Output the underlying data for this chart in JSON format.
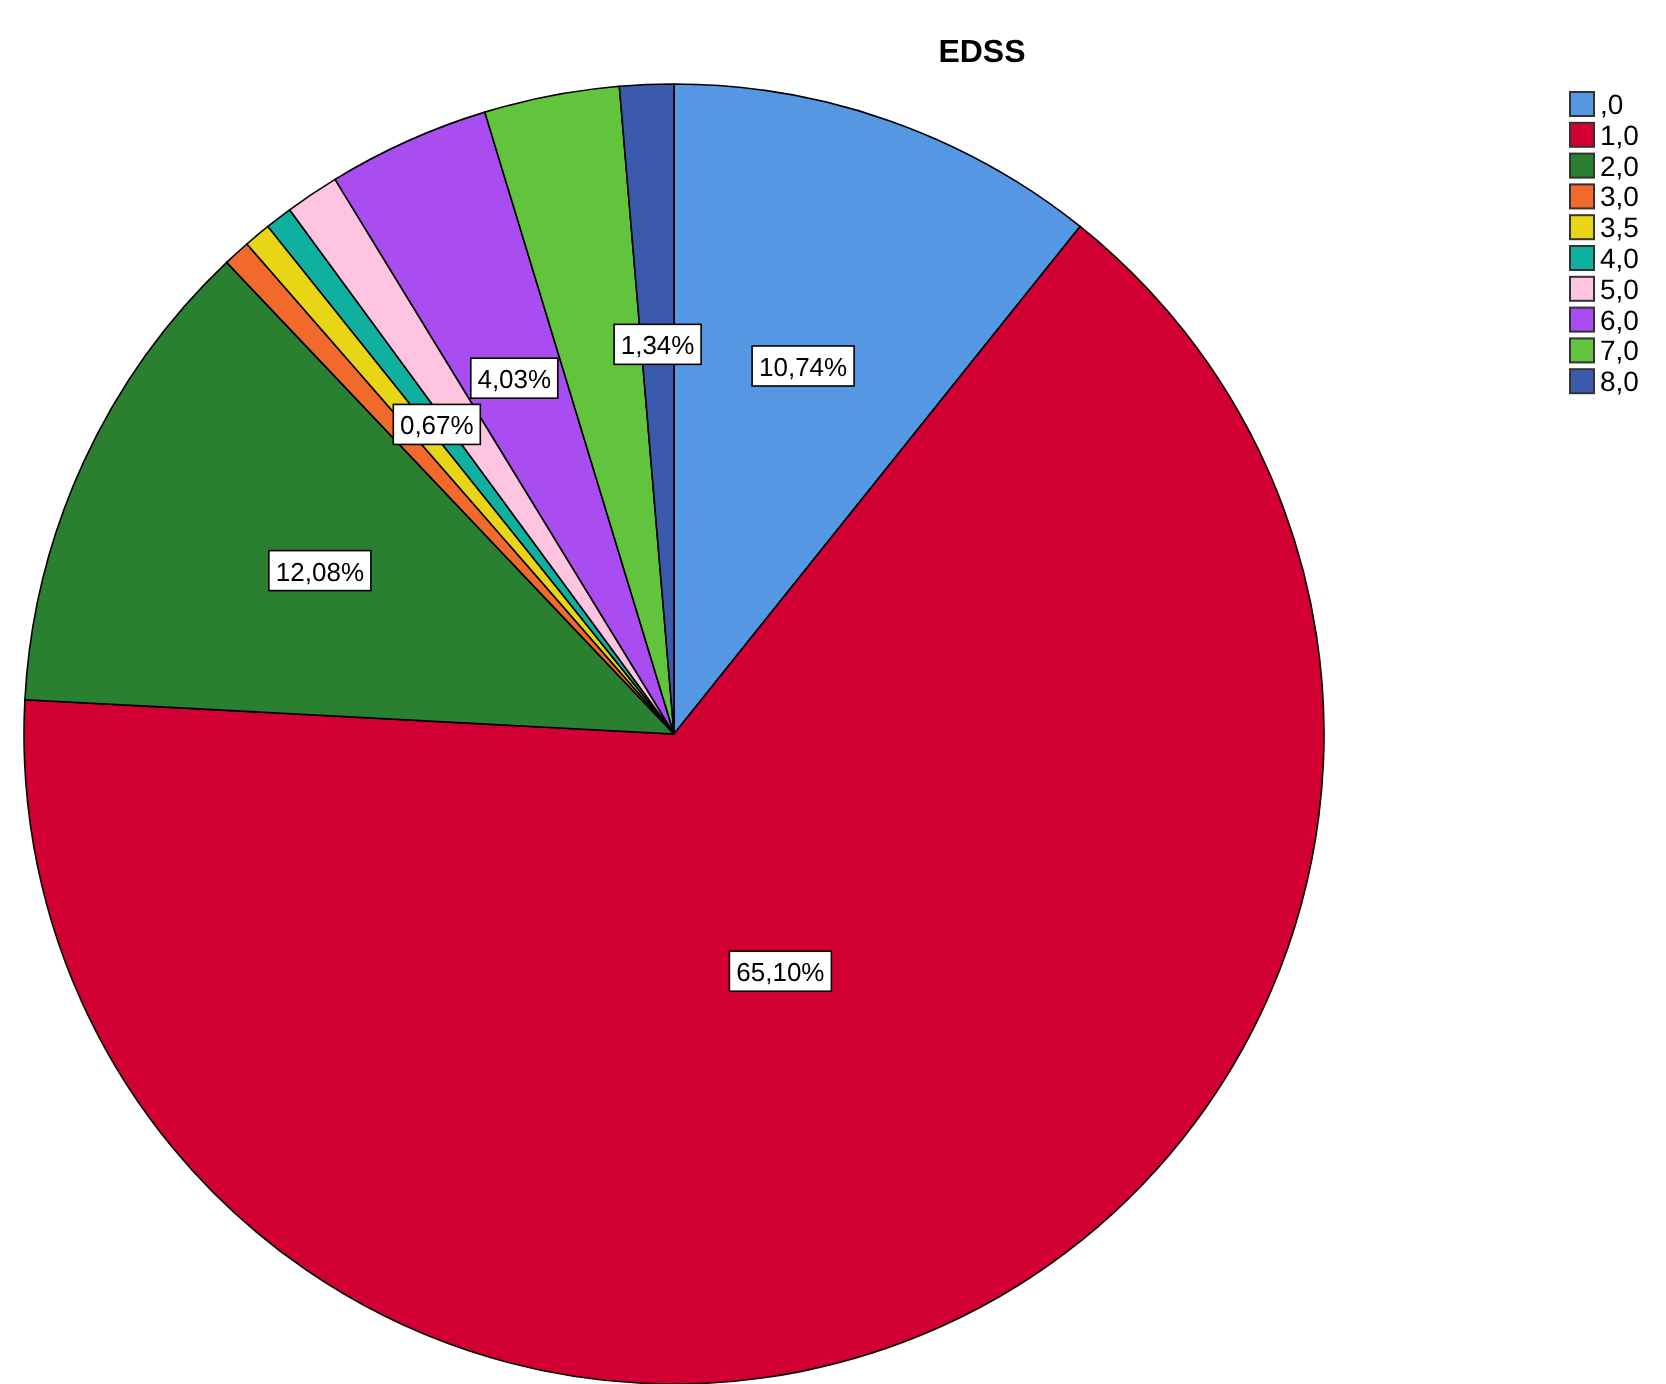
{
  "chart_data": {
    "type": "pie",
    "title": "EDSS",
    "categories": [
      ",0",
      "1,0",
      "2,0",
      "3,0",
      "3,5",
      "4,0",
      "5,0",
      "6,0",
      "7,0",
      "8,0"
    ],
    "values": [
      10.74,
      65.1,
      12.08,
      0.67,
      0.67,
      0.67,
      1.34,
      4.03,
      3.36,
      1.34
    ],
    "colors": [
      "#5597e3",
      "#d20032",
      "#2a8030",
      "#f26a2b",
      "#e8d515",
      "#10b0a0",
      "#ffc4e0",
      "#a94df0",
      "#62c43c",
      "#3b5aac"
    ],
    "value_labels": [
      "10,74%",
      "65,10%",
      "12,08%",
      null,
      null,
      "0,67%",
      null,
      "4,03%",
      null,
      "1,34%"
    ],
    "legend": "top right"
  }
}
